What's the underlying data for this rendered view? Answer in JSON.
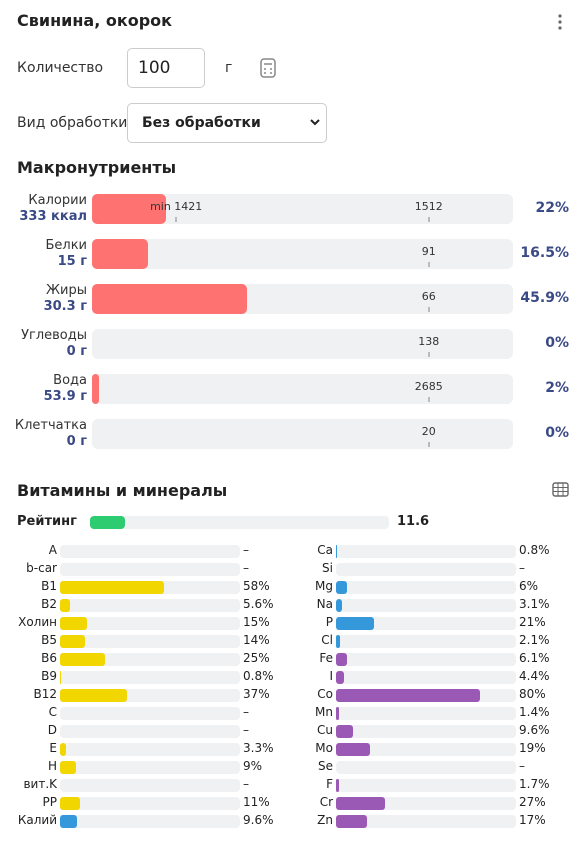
{
  "header": {
    "title": "Свинина, окорок"
  },
  "form": {
    "quantity_label": "Количество",
    "quantity_value": "100",
    "unit": "г",
    "processing_label": "Вид обработки",
    "processing_value": "Без обработки"
  },
  "macros": {
    "title": "Макронутриенты",
    "min_label": "min 1421",
    "rows": [
      {
        "name": "Калории",
        "amount": "333 ккал",
        "norm": 1512,
        "percent": 22,
        "percent_label": "22%"
      },
      {
        "name": "Белки",
        "amount": "15 г",
        "norm": 91,
        "percent": 16.5,
        "percent_label": "16.5%"
      },
      {
        "name": "Жиры",
        "amount": "30.3 г",
        "norm": 66,
        "percent": 45.9,
        "percent_label": "45.9%"
      },
      {
        "name": "Углеводы",
        "amount": "0 г",
        "norm": 138,
        "percent": 0,
        "percent_label": "0%"
      },
      {
        "name": "Вода",
        "amount": "53.9 г",
        "norm": 2685,
        "percent": 2,
        "percent_label": "2%"
      },
      {
        "name": "Клетчатка",
        "amount": "0 г",
        "norm": 20,
        "percent": 0,
        "percent_label": "0%"
      }
    ]
  },
  "micros": {
    "title": "Витамины и минералы",
    "rating": {
      "label": "Рейтинг",
      "value": 11.6,
      "color": "#2ecc71"
    },
    "left": [
      {
        "name": "A",
        "value": null,
        "label": "–",
        "color": "#f1d600"
      },
      {
        "name": "b-car",
        "value": null,
        "label": "–",
        "color": "#f1d600"
      },
      {
        "name": "B1",
        "value": 58,
        "label": "58%",
        "color": "#f1d600"
      },
      {
        "name": "B2",
        "value": 5.6,
        "label": "5.6%",
        "color": "#f1d600"
      },
      {
        "name": "Холин",
        "value": 15,
        "label": "15%",
        "color": "#f1d600"
      },
      {
        "name": "B5",
        "value": 14,
        "label": "14%",
        "color": "#f1d600"
      },
      {
        "name": "B6",
        "value": 25,
        "label": "25%",
        "color": "#f1d600"
      },
      {
        "name": "B9",
        "value": 0.8,
        "label": "0.8%",
        "color": "#f1d600"
      },
      {
        "name": "B12",
        "value": 37,
        "label": "37%",
        "color": "#f1d600"
      },
      {
        "name": "C",
        "value": null,
        "label": "–",
        "color": "#f1d600"
      },
      {
        "name": "D",
        "value": null,
        "label": "–",
        "color": "#f1d600"
      },
      {
        "name": "E",
        "value": 3.3,
        "label": "3.3%",
        "color": "#f1d600"
      },
      {
        "name": "H",
        "value": 9,
        "label": "9%",
        "color": "#f1d600"
      },
      {
        "name": "вит.K",
        "value": null,
        "label": "–",
        "color": "#f1d600"
      },
      {
        "name": "PP",
        "value": 11,
        "label": "11%",
        "color": "#f1d600"
      },
      {
        "name": "Калий",
        "value": 9.6,
        "label": "9.6%",
        "color": "#3498db"
      }
    ],
    "right": [
      {
        "name": "Ca",
        "value": 0.8,
        "label": "0.8%",
        "color": "#3498db"
      },
      {
        "name": "Si",
        "value": null,
        "label": "–",
        "color": "#3498db"
      },
      {
        "name": "Mg",
        "value": 6,
        "label": "6%",
        "color": "#3498db"
      },
      {
        "name": "Na",
        "value": 3.1,
        "label": "3.1%",
        "color": "#3498db"
      },
      {
        "name": "P",
        "value": 21,
        "label": "21%",
        "color": "#3498db"
      },
      {
        "name": "Cl",
        "value": 2.1,
        "label": "2.1%",
        "color": "#3498db"
      },
      {
        "name": "Fe",
        "value": 6.1,
        "label": "6.1%",
        "color": "#9b59b6"
      },
      {
        "name": "I",
        "value": 4.4,
        "label": "4.4%",
        "color": "#9b59b6"
      },
      {
        "name": "Co",
        "value": 80,
        "label": "80%",
        "color": "#9b59b6"
      },
      {
        "name": "Mn",
        "value": 1.4,
        "label": "1.4%",
        "color": "#9b59b6"
      },
      {
        "name": "Cu",
        "value": 9.6,
        "label": "9.6%",
        "color": "#9b59b6"
      },
      {
        "name": "Mo",
        "value": 19,
        "label": "19%",
        "color": "#9b59b6"
      },
      {
        "name": "Se",
        "value": null,
        "label": "–",
        "color": "#9b59b6"
      },
      {
        "name": "F",
        "value": 1.7,
        "label": "1.7%",
        "color": "#9b59b6"
      },
      {
        "name": "Cr",
        "value": 27,
        "label": "27%",
        "color": "#9b59b6"
      },
      {
        "name": "Zn",
        "value": 17,
        "label": "17%",
        "color": "#9b59b6"
      }
    ]
  }
}
